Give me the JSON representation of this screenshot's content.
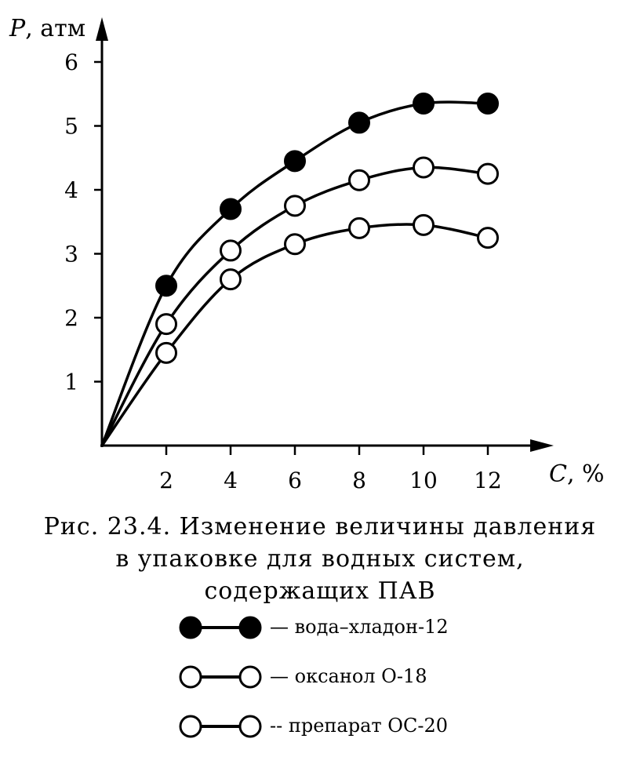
{
  "chart_data": {
    "type": "line",
    "ylabel": "P, атм",
    "xlabel": "C, %",
    "xlim": [
      0,
      13
    ],
    "ylim": [
      0,
      6.5
    ],
    "xticks": [
      "2",
      "4",
      "6",
      "8",
      "10",
      "12"
    ],
    "yticks": [
      "1",
      "2",
      "3",
      "4",
      "5",
      "6"
    ],
    "grid": false,
    "legend_position": "bottom",
    "series": [
      {
        "name": "вода–хладон-12",
        "marker": "filled-circle",
        "x": [
          0,
          2,
          4,
          6,
          8,
          10,
          12
        ],
        "y": [
          0,
          2.5,
          3.7,
          4.45,
          5.05,
          5.35,
          5.35
        ]
      },
      {
        "name": "оксанол О-18",
        "marker": "open-circle",
        "x": [
          0,
          2,
          4,
          6,
          8,
          10,
          12
        ],
        "y": [
          0,
          1.9,
          3.05,
          3.75,
          4.15,
          4.35,
          4.25
        ]
      },
      {
        "name": "препарат ОС-20",
        "marker": "open-circle",
        "x": [
          0,
          2,
          4,
          6,
          8,
          10,
          12
        ],
        "y": [
          0,
          1.45,
          2.6,
          3.15,
          3.4,
          3.45,
          3.25
        ]
      }
    ]
  },
  "caption": {
    "line1": "Рис. 23.4. Изменение величины давления",
    "line2": "в упаковке для водных систем,",
    "line3": "содержащих ПАВ"
  },
  "legend": [
    {
      "label": "— вода–хладон-12"
    },
    {
      "label": "— оксанол О-18"
    },
    {
      "label": "-- препарат ОС-20"
    }
  ]
}
